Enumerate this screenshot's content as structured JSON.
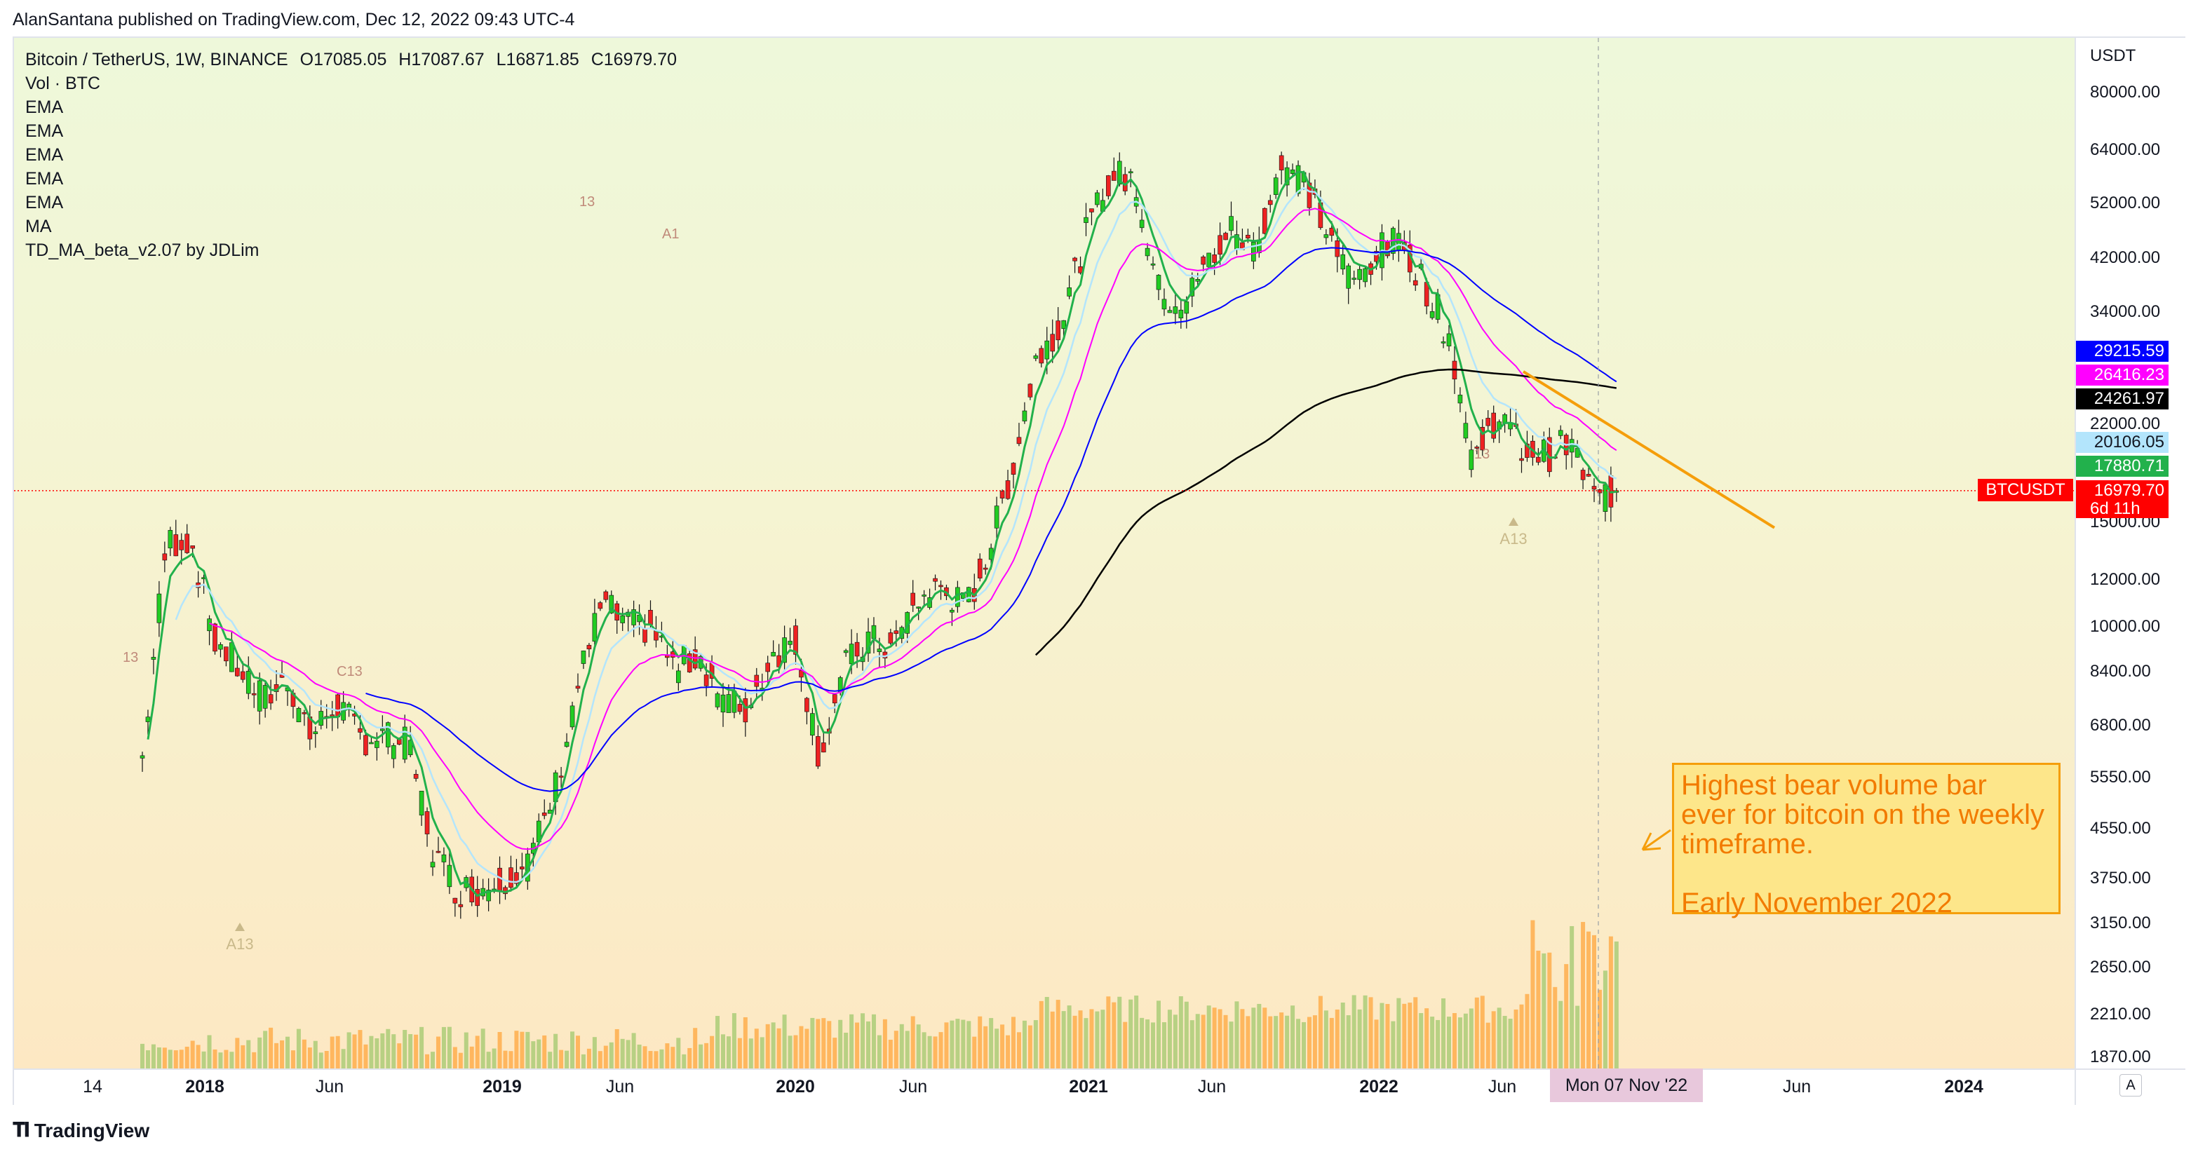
{
  "header": {
    "published_line": "AlanSantana published on TradingView.com, Dec 12, 2022 09:43 UTC-4"
  },
  "legend": {
    "symbol": "Bitcoin / TetherUS, 1W, BINANCE",
    "open": "O17085.05",
    "high": "H17087.67",
    "low": "L16871.85",
    "close": "C16979.70",
    "indicators": [
      "Vol · BTC",
      "EMA",
      "EMA",
      "EMA",
      "EMA",
      "EMA",
      "MA",
      "TD_MA_beta_v2.07 by JDLim"
    ]
  },
  "price_axis": {
    "unit": "USDT",
    "labels": [
      "80000.00",
      "64000.00",
      "52000.00",
      "42000.00",
      "34000.00",
      "22000.00",
      "15000.00",
      "12000.00",
      "10000.00",
      "8400.00",
      "6800.00",
      "5550.00",
      "4550.00",
      "3750.00",
      "3150.00",
      "2650.00",
      "2210.00",
      "1870.00"
    ],
    "tags": [
      {
        "text": "29215.59",
        "color": "#0000ff",
        "text_color": "#ffffff"
      },
      {
        "text": "26416.23",
        "color": "#ff00ff",
        "text_color": "#ffffff"
      },
      {
        "text": "24261.97",
        "color": "#000000",
        "text_color": "#ffffff"
      },
      {
        "text": "20106.05",
        "color": "#b3e5fc",
        "text_color": "#131722"
      },
      {
        "text": "17880.71",
        "color": "#22b14c",
        "text_color": "#ffffff"
      },
      {
        "text": "16979.70",
        "color": "#ff0000",
        "text_color": "#ffffff"
      },
      {
        "text": "6d 11h",
        "color": "#ff0000",
        "text_color": "#ffffff"
      }
    ],
    "symbol_tag": "BTCUSDT"
  },
  "time_axis": {
    "labels": [
      {
        "text": "14",
        "bold": false
      },
      {
        "text": "2018",
        "bold": true
      },
      {
        "text": "Jun",
        "bold": false
      },
      {
        "text": "2019",
        "bold": true
      },
      {
        "text": "Jun",
        "bold": false
      },
      {
        "text": "2020",
        "bold": true
      },
      {
        "text": "Jun",
        "bold": false
      },
      {
        "text": "2021",
        "bold": true
      },
      {
        "text": "Jun",
        "bold": false
      },
      {
        "text": "2022",
        "bold": true
      },
      {
        "text": "Jun",
        "bold": false
      },
      {
        "text": "Jun",
        "bold": false
      },
      {
        "text": "2024",
        "bold": true
      }
    ],
    "crosshair_label": "Mon 07 Nov '22",
    "autoscale_button": "A"
  },
  "annotations": {
    "note_lines": [
      "Highest bear volume bar",
      "ever for bitcoin on the weekly",
      "timeframe."
    ],
    "note_footer": "Early November 2022",
    "td_labels": [
      "A13",
      "A13",
      "13",
      "13",
      "C13",
      "13",
      "A1"
    ]
  },
  "footer": {
    "brand": "TradingView"
  },
  "colors": {
    "ema_blue": "#0000ff",
    "ema_magenta": "#ff00ff",
    "ma_black": "#000000",
    "ema_lightblue": "#b3e5fc",
    "td_green": "#22b14c",
    "bull": "#22cc22",
    "bear": "#ee2222",
    "trendline": "#f59e0b",
    "close_line": "#ff0000"
  },
  "chart_data": {
    "type": "candlestick",
    "symbol": "BTCUSDT",
    "interval": "1W",
    "y_scale": "log",
    "ylim": [
      1700,
      90000
    ],
    "last_close": 16979.7,
    "price_path": [
      [
        "2017-11",
        6000
      ],
      [
        "2017-12",
        14000
      ],
      [
        "2018-01",
        14000
      ],
      [
        "2018-02",
        9500
      ],
      [
        "2018-03",
        8500
      ],
      [
        "2018-04",
        7500
      ],
      [
        "2018-05",
        8200
      ],
      [
        "2018-06",
        6500
      ],
      [
        "2018-07",
        7500
      ],
      [
        "2018-08",
        6500
      ],
      [
        "2018-09",
        6500
      ],
      [
        "2018-10",
        6300
      ],
      [
        "2018-11",
        4200
      ],
      [
        "2018-12",
        3600
      ],
      [
        "2019-01",
        3600
      ],
      [
        "2019-02",
        3800
      ],
      [
        "2019-03",
        4000
      ],
      [
        "2019-04",
        5200
      ],
      [
        "2019-05",
        8000
      ],
      [
        "2019-06",
        11000
      ],
      [
        "2019-07",
        10000
      ],
      [
        "2019-08",
        10000
      ],
      [
        "2019-09",
        8500
      ],
      [
        "2019-10",
        9000
      ],
      [
        "2019-11",
        7500
      ],
      [
        "2019-12",
        7200
      ],
      [
        "2020-01",
        9000
      ],
      [
        "2020-02",
        9500
      ],
      [
        "2020-03",
        6000
      ],
      [
        "2020-04",
        8500
      ],
      [
        "2020-05",
        9500
      ],
      [
        "2020-06",
        9200
      ],
      [
        "2020-07",
        11000
      ],
      [
        "2020-08",
        11700
      ],
      [
        "2020-09",
        10700
      ],
      [
        "2020-10",
        13500
      ],
      [
        "2020-11",
        19000
      ],
      [
        "2020-12",
        29000
      ],
      [
        "2021-01",
        33000
      ],
      [
        "2021-02",
        46000
      ],
      [
        "2021-03",
        58000
      ],
      [
        "2021-04",
        57000
      ],
      [
        "2021-05",
        37000
      ],
      [
        "2021-06",
        35000
      ],
      [
        "2021-07",
        41000
      ],
      [
        "2021-08",
        47000
      ],
      [
        "2021-09",
        43000
      ],
      [
        "2021-10",
        61000
      ],
      [
        "2021-11",
        57000
      ],
      [
        "2021-12",
        46000
      ],
      [
        "2022-01",
        38000
      ],
      [
        "2022-02",
        43000
      ],
      [
        "2022-03",
        45000
      ],
      [
        "2022-04",
        38000
      ],
      [
        "2022-05",
        31000
      ],
      [
        "2022-06",
        19000
      ],
      [
        "2022-07",
        23000
      ],
      [
        "2022-08",
        20000
      ],
      [
        "2022-09",
        19500
      ],
      [
        "2022-10",
        20500
      ],
      [
        "2022-11",
        16500
      ],
      [
        "2022-12",
        16980
      ]
    ],
    "volume_note": "Highest bear weekly volume bar in early November 2022"
  }
}
